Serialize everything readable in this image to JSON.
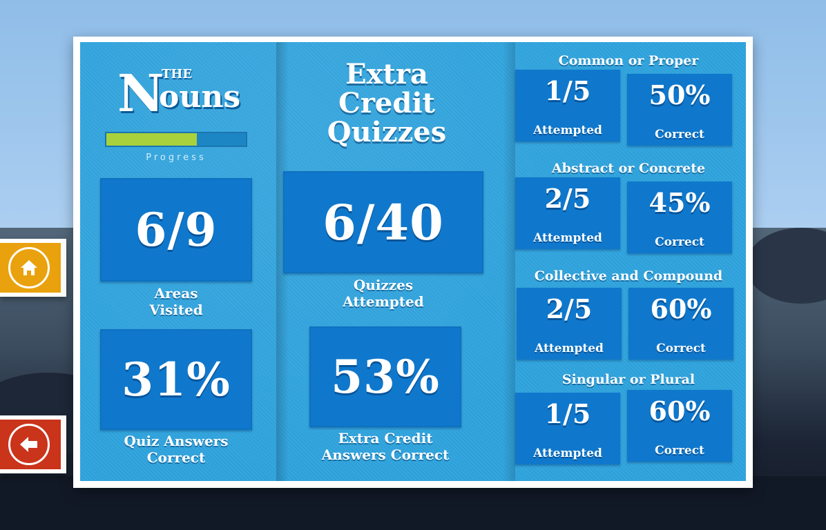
{
  "logo": {
    "the": "THE",
    "n": "N",
    "ouns": "ouns"
  },
  "progress": {
    "label": "Progress",
    "fraction": 0.65
  },
  "left": {
    "areas_value": "6/9",
    "areas_caption": [
      "Areas",
      "Visited"
    ],
    "quiz_value": "31%",
    "quiz_caption": [
      "Quiz Answers",
      "Correct"
    ]
  },
  "middle": {
    "title": [
      "Extra",
      "Credit",
      "Quizzes"
    ],
    "attempted_value": "6/40",
    "attempted_caption": [
      "Quizzes",
      "Attempted"
    ],
    "correct_value": "53%",
    "correct_caption": [
      "Extra Credit",
      "Answers Correct"
    ]
  },
  "categories": [
    {
      "title": "Common or Proper",
      "attempted": "1/5",
      "attempted_label": "Attempted",
      "correct": "50%",
      "correct_label": "Correct"
    },
    {
      "title": "Abstract or Concrete",
      "attempted": "2/5",
      "attempted_label": "Attempted",
      "correct": "45%",
      "correct_label": "Correct"
    },
    {
      "title": "Collective and Compound",
      "attempted": "2/5",
      "attempted_label": "Attempted",
      "correct": "60%",
      "correct_label": "Correct"
    },
    {
      "title": "Singular or Plural",
      "attempted": "1/5",
      "attempted_label": "Attempted",
      "correct": "60%",
      "correct_label": "Correct"
    }
  ],
  "buttons": {
    "home_icon": "home-icon",
    "back_icon": "back-arrow-icon"
  },
  "colors": {
    "panel": "#2fa3dd",
    "box": "#0f78cc",
    "progress_fill": "#a9d13b",
    "home_button": "#e9a20d",
    "back_button": "#c9341b"
  }
}
